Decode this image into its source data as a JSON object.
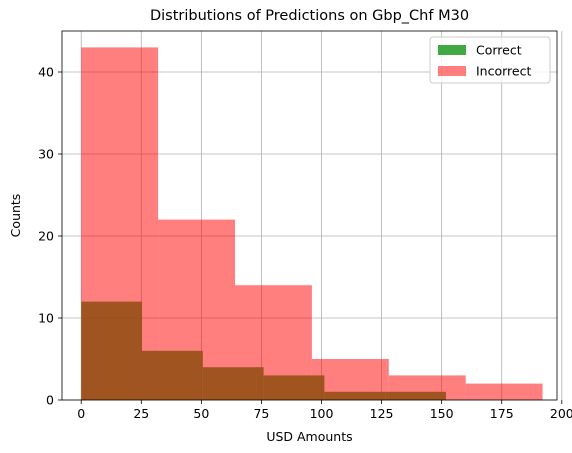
{
  "chart_data": {
    "type": "bar",
    "title": "Distributions of Predictions on Gbp_Chf M30",
    "xlabel": "USD Amounts",
    "ylabel": "Counts",
    "xlim": [
      -8,
      198
    ],
    "ylim": [
      0,
      45
    ],
    "xticks": [
      0,
      25,
      50,
      75,
      100,
      125,
      150,
      175,
      200
    ],
    "yticks": [
      0,
      10,
      20,
      30,
      40
    ],
    "grid": true,
    "legend_position": "top-right",
    "series": [
      {
        "name": "Correct",
        "color": "#2ca02c",
        "opacity": 0.9,
        "bins": [
          {
            "x0": 0,
            "x1": 25.3,
            "value": 12
          },
          {
            "x0": 25.3,
            "x1": 50.6,
            "value": 6
          },
          {
            "x0": 50.6,
            "x1": 75.9,
            "value": 4
          },
          {
            "x0": 75.9,
            "x1": 101.2,
            "value": 3
          },
          {
            "x0": 101.2,
            "x1": 126.5,
            "value": 1
          },
          {
            "x0": 126.5,
            "x1": 151.8,
            "value": 1
          }
        ]
      },
      {
        "name": "Incorrect",
        "color": "#ff0000",
        "opacity": 0.5,
        "bins": [
          {
            "x0": 0,
            "x1": 32,
            "value": 43
          },
          {
            "x0": 32,
            "x1": 64,
            "value": 22
          },
          {
            "x0": 64,
            "x1": 96,
            "value": 14
          },
          {
            "x0": 96,
            "x1": 128,
            "value": 5
          },
          {
            "x0": 128,
            "x1": 160,
            "value": 3
          },
          {
            "x0": 160,
            "x1": 192,
            "value": 2
          }
        ]
      }
    ]
  }
}
